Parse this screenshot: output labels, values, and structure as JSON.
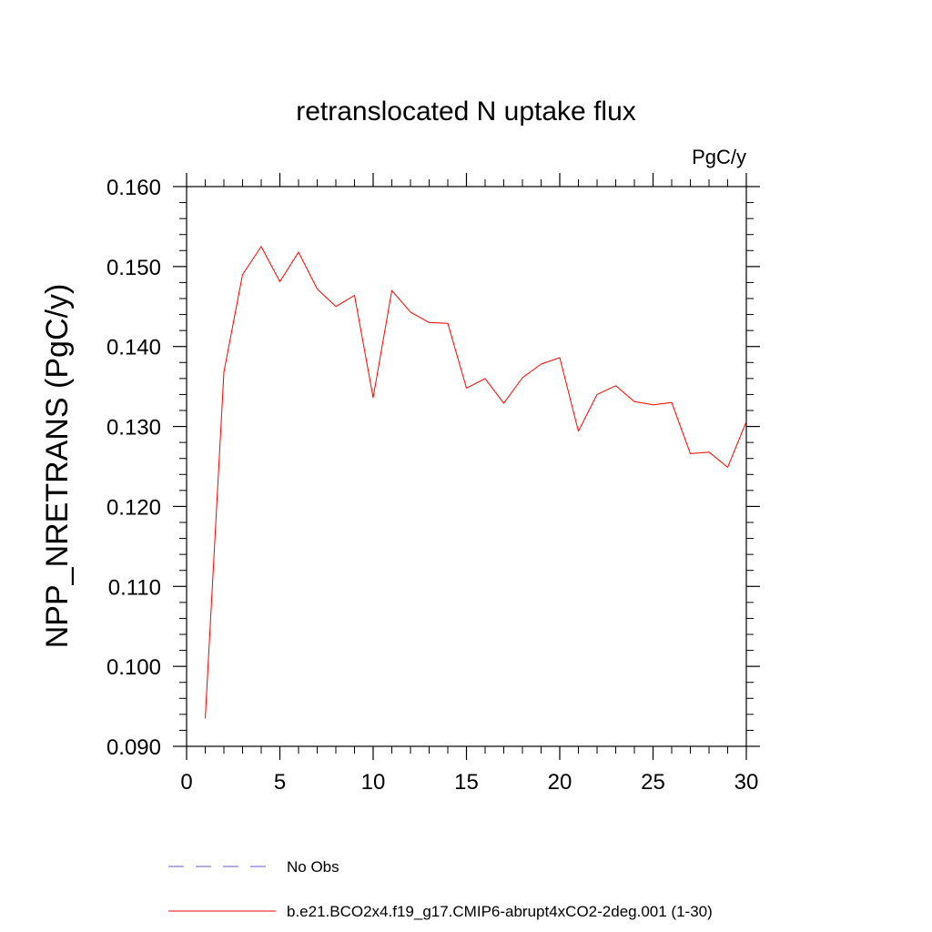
{
  "chart_data": {
    "type": "line",
    "title": "retranslocated N uptake flux",
    "unit_label": "PgC/y",
    "xlabel": "",
    "ylabel": "NPP_NRETRANS  (PgC/y)",
    "xlim": [
      0,
      30
    ],
    "ylim": [
      0.09,
      0.16
    ],
    "x_ticks": [
      0,
      5,
      10,
      15,
      20,
      25,
      30
    ],
    "x_tick_labels": [
      "0",
      "5",
      "10",
      "15",
      "20",
      "25",
      "30"
    ],
    "y_ticks": [
      0.09,
      0.1,
      0.11,
      0.12,
      0.13,
      0.14,
      0.15,
      0.16
    ],
    "y_tick_labels": [
      "0.090",
      "0.100",
      "0.110",
      "0.120",
      "0.130",
      "0.140",
      "0.150",
      "0.160"
    ],
    "grid": false,
    "legend_position": "bottom",
    "series": [
      {
        "name": "b.e21.BCO2x4.f19_g17.CMIP6-abrupt4xCO2-2deg.001 (1-30)",
        "color": "#ff0000",
        "style": "solid",
        "x": [
          1,
          2,
          3,
          4,
          5,
          6,
          7,
          8,
          9,
          10,
          11,
          12,
          13,
          14,
          15,
          16,
          17,
          18,
          19,
          20,
          21,
          22,
          23,
          24,
          25,
          26,
          27,
          28,
          29,
          30
        ],
        "y": [
          0.0935,
          0.1368,
          0.149,
          0.1525,
          0.1481,
          0.1518,
          0.1472,
          0.145,
          0.1464,
          0.1336,
          0.147,
          0.1443,
          0.143,
          0.1429,
          0.1348,
          0.136,
          0.1329,
          0.1361,
          0.1378,
          0.1386,
          0.1294,
          0.134,
          0.1351,
          0.1331,
          0.1327,
          0.133,
          0.1266,
          0.1268,
          0.1249,
          0.1306
        ]
      }
    ],
    "legend": [
      {
        "label": "No Obs",
        "color": "#6a5acd",
        "style": "dashed"
      },
      {
        "label": "b.e21.BCO2x4.f19_g17.CMIP6-abrupt4xCO2-2deg.001 (1-30)",
        "color": "#ff0000",
        "style": "solid"
      }
    ]
  }
}
